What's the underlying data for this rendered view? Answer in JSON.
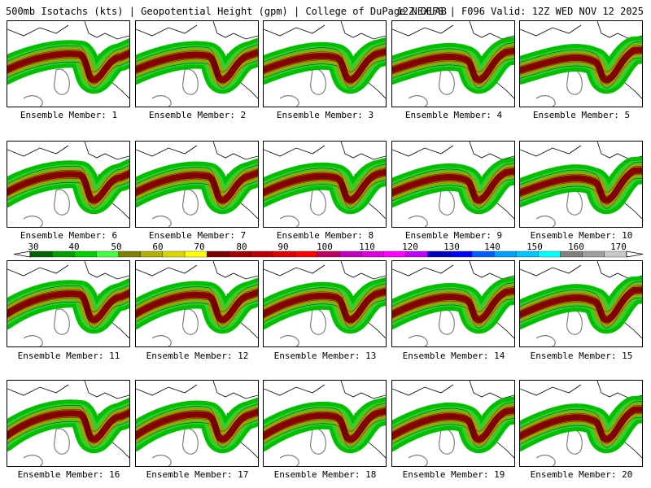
{
  "header": {
    "left": "500mb Isotachs (kts) | Geopotential Height (gpm) | College of DuPage NEXLAB",
    "right": "12Z GEFS | F096 Valid: 12Z WED NOV 12 2025"
  },
  "members": [
    {
      "label": "Ensemble Member: 1"
    },
    {
      "label": "Ensemble Member: 2"
    },
    {
      "label": "Ensemble Member: 3"
    },
    {
      "label": "Ensemble Member: 4"
    },
    {
      "label": "Ensemble Member: 5"
    },
    {
      "label": "Ensemble Member: 6"
    },
    {
      "label": "Ensemble Member: 7"
    },
    {
      "label": "Ensemble Member: 8"
    },
    {
      "label": "Ensemble Member: 9"
    },
    {
      "label": "Ensemble Member: 10"
    },
    {
      "label": "Ensemble Member: 11"
    },
    {
      "label": "Ensemble Member: 12"
    },
    {
      "label": "Ensemble Member: 13"
    },
    {
      "label": "Ensemble Member: 14"
    },
    {
      "label": "Ensemble Member: 15"
    },
    {
      "label": "Ensemble Member: 16"
    },
    {
      "label": "Ensemble Member: 17"
    },
    {
      "label": "Ensemble Member: 18"
    },
    {
      "label": "Ensemble Member: 19"
    },
    {
      "label": "Ensemble Member: 20"
    }
  ],
  "colorbar": {
    "labels": [
      "30",
      "40",
      "50",
      "60",
      "70",
      "80",
      "90",
      "100",
      "110",
      "120",
      "130",
      "140",
      "150",
      "160",
      "170"
    ],
    "colors": [
      "#006400",
      "#00a000",
      "#00d200",
      "#40ff40",
      "#808000",
      "#b0b000",
      "#d8d800",
      "#ffff00",
      "#800000",
      "#a00000",
      "#c00000",
      "#e00000",
      "#ff0000",
      "#c00060",
      "#c000c0",
      "#e000e0",
      "#ff00ff",
      "#c000ff",
      "#0000c0",
      "#0000ff",
      "#0060ff",
      "#00a0ff",
      "#00c8ff",
      "#00ffff",
      "#808080",
      "#a0a0a0",
      "#c8c8c8"
    ]
  },
  "style": {
    "land_fill": "#ffffff",
    "height_contour": "#808080",
    "jet_outer": "#00c000",
    "jet_mid": "#a0a000",
    "jet_core": "#900000"
  }
}
